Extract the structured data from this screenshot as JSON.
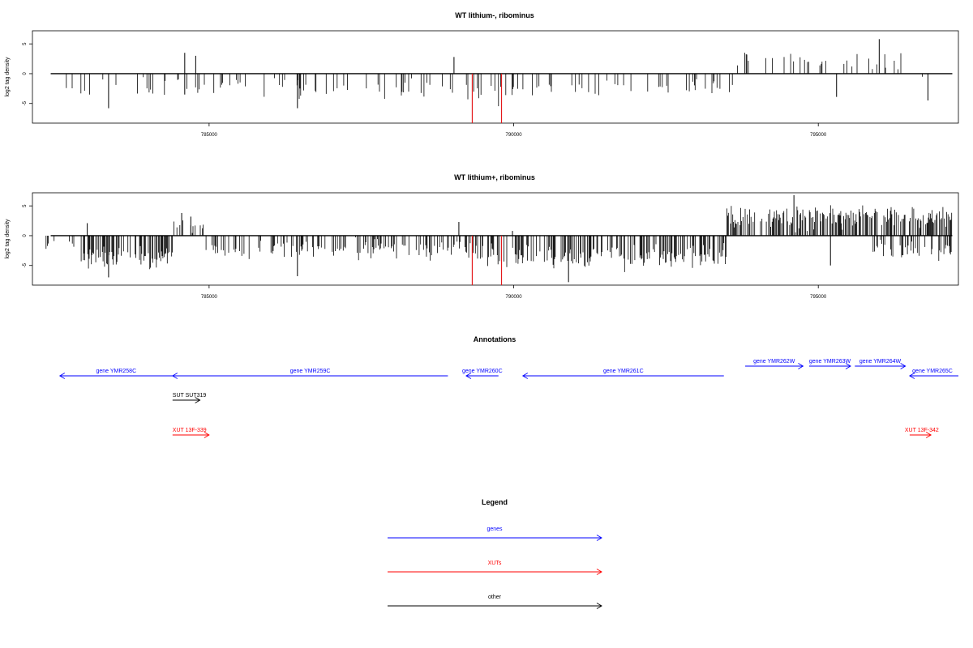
{
  "chart_data": [
    {
      "type": "bar",
      "title": "WT lithium-, ribominus",
      "ylabel": "log2 tag density",
      "xlabel": "",
      "xlim": [
        782100,
        797300
      ],
      "ylim": [
        -8.3,
        7.2
      ],
      "xticks": [
        785000,
        790000,
        795000
      ],
      "yticks": [
        -5,
        0,
        5
      ],
      "grid": false,
      "bar_color": "#000000",
      "highlight_color": "#e41a1c",
      "highlights": [
        {
          "x": 789320,
          "y": -8.3
        },
        {
          "x": 789800,
          "y": -8.3
        }
      ],
      "regions": [
        {
          "from": 782500,
          "to": 783800,
          "mean": -2.6,
          "spread": 1.4,
          "density": 0.08
        },
        {
          "from": 783800,
          "to": 784400,
          "mean": -2.6,
          "spread": 1.6,
          "density": 0.1
        },
        {
          "from": 784400,
          "to": 784550,
          "mean": -1.2,
          "spread": 1.0,
          "density": 0.08
        },
        {
          "from": 784550,
          "to": 789000,
          "mean": -2.5,
          "spread": 1.6,
          "density": 0.14
        },
        {
          "from": 789200,
          "to": 789900,
          "mean": -3.4,
          "spread": 2.0,
          "density": 0.22
        },
        {
          "from": 789900,
          "to": 793600,
          "mean": -2.4,
          "spread": 1.5,
          "density": 0.14
        },
        {
          "from": 793600,
          "to": 796600,
          "mean": 2.0,
          "spread": 1.6,
          "density": 0.1
        },
        {
          "from": 796600,
          "to": 797200,
          "mean": -1.8,
          "spread": 1.2,
          "density": 0.08
        }
      ],
      "spikes": [
        {
          "x": 784600,
          "y": 3.5
        },
        {
          "x": 784600,
          "y": -3.5
        },
        {
          "x": 784780,
          "y": 3.0
        },
        {
          "x": 789020,
          "y": 2.8
        },
        {
          "x": 786450,
          "y": -5.8
        },
        {
          "x": 783350,
          "y": -5.8
        },
        {
          "x": 796000,
          "y": 5.8
        },
        {
          "x": 796800,
          "y": -4.5
        },
        {
          "x": 795300,
          "y": -3.9
        }
      ]
    },
    {
      "type": "bar",
      "title": "WT lithium+, ribominus",
      "ylabel": "log2 tag density",
      "xlabel": "",
      "xlim": [
        782100,
        797300
      ],
      "ylim": [
        -8.3,
        7.2
      ],
      "xticks": [
        785000,
        790000,
        795000
      ],
      "yticks": [
        -5,
        0,
        5
      ],
      "grid": false,
      "bar_color": "#000000",
      "highlight_color": "#e41a1c",
      "highlights": [
        {
          "x": 789320,
          "y": -8.3
        },
        {
          "x": 789800,
          "y": -8.3
        }
      ],
      "regions": [
        {
          "from": 782300,
          "to": 782900,
          "mean": -1.8,
          "spread": 1.0,
          "density": 0.06
        },
        {
          "from": 782900,
          "to": 784400,
          "mean": -3.6,
          "spread": 2.0,
          "density": 0.45
        },
        {
          "from": 784400,
          "to": 784950,
          "mean": 1.8,
          "spread": 1.2,
          "density": 0.3
        },
        {
          "from": 784950,
          "to": 789300,
          "mean": -2.4,
          "spread": 1.6,
          "density": 0.3
        },
        {
          "from": 789300,
          "to": 790000,
          "mean": -3.2,
          "spread": 2.0,
          "density": 0.35
        },
        {
          "from": 790000,
          "to": 793500,
          "mean": -3.4,
          "spread": 2.0,
          "density": 0.45
        },
        {
          "from": 793500,
          "to": 797200,
          "mean": 3.2,
          "spread": 2.0,
          "density": 0.55
        },
        {
          "from": 795900,
          "to": 797200,
          "mean": -2.4,
          "spread": 1.6,
          "density": 0.35
        }
      ],
      "spikes": [
        {
          "x": 783000,
          "y": 2.1
        },
        {
          "x": 784550,
          "y": 3.8
        },
        {
          "x": 784700,
          "y": 3.2
        },
        {
          "x": 789100,
          "y": 2.3
        },
        {
          "x": 786450,
          "y": -6.8
        },
        {
          "x": 790900,
          "y": -7.8
        },
        {
          "x": 783350,
          "y": -7.0
        },
        {
          "x": 794600,
          "y": 6.8
        },
        {
          "x": 795200,
          "y": -5.0
        },
        {
          "x": 789980,
          "y": 0.8
        }
      ]
    }
  ],
  "annotations": {
    "title": "Annotations",
    "xlim": [
      782100,
      797300
    ],
    "items": [
      {
        "label": "gene YMR258C",
        "from": 782550,
        "to": 784400,
        "track": 1,
        "strand": "-",
        "type": "gene"
      },
      {
        "label": "gene YMR259C",
        "from": 784400,
        "to": 788920,
        "track": 1,
        "strand": "-",
        "type": "gene"
      },
      {
        "label": "gene YMR260C",
        "from": 789220,
        "to": 789750,
        "track": 1,
        "strand": "-",
        "type": "gene"
      },
      {
        "label": "gene YMR261C",
        "from": 790150,
        "to": 793450,
        "track": 1,
        "strand": "-",
        "type": "gene"
      },
      {
        "label": "gene YMR262W",
        "from": 793800,
        "to": 794750,
        "track": 0,
        "strand": "+",
        "type": "gene"
      },
      {
        "label": "gene YMR263W",
        "from": 794850,
        "to": 795530,
        "track": 0,
        "strand": "+",
        "type": "gene"
      },
      {
        "label": "gene YMR264W",
        "from": 795600,
        "to": 796430,
        "track": 0,
        "strand": "+",
        "type": "gene"
      },
      {
        "label": "gene YMR265C",
        "from": 796500,
        "to": 797300,
        "track": 1,
        "strand": "-",
        "type": "gene"
      },
      {
        "label": "SUT SUT319",
        "from": 784400,
        "to": 784850,
        "track": 2,
        "strand": "+",
        "type": "other"
      },
      {
        "label": "XUT 13F-339",
        "from": 784400,
        "to": 785000,
        "track": 3,
        "strand": "+",
        "type": "xut"
      },
      {
        "label": "XUT 13F-342",
        "from": 796500,
        "to": 796850,
        "track": 3,
        "strand": "+",
        "type": "xut"
      }
    ]
  },
  "legend": {
    "title": "Legend",
    "items": [
      {
        "label": "genes",
        "type": "gene"
      },
      {
        "label": "XUTs",
        "type": "xut"
      },
      {
        "label": "other",
        "type": "other"
      }
    ]
  },
  "colors": {
    "gene": "#0000ff",
    "xut": "#ff0000",
    "other": "#000000"
  }
}
